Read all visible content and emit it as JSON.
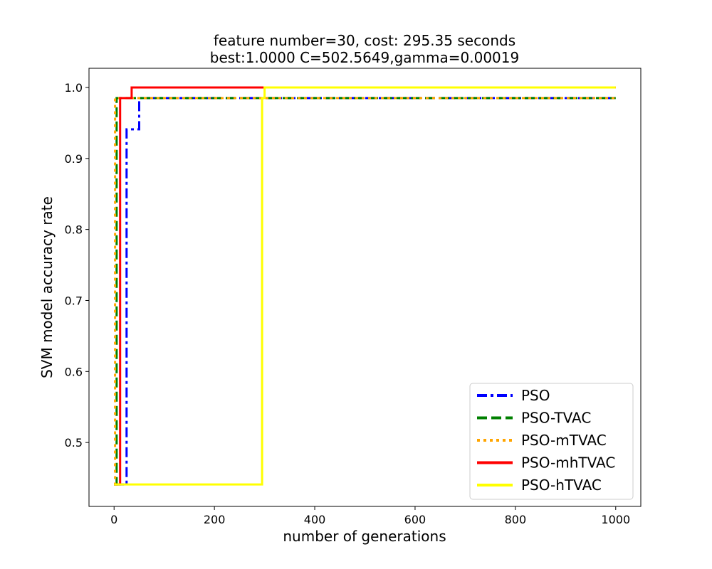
{
  "chart_data": {
    "type": "line",
    "title_line1": "feature number=30, cost: 295.35 seconds",
    "title_line2": "best:1.0000  C=502.5649,gamma=0.00019",
    "xlabel": "number of generations",
    "ylabel": "SVM model accuracy rate",
    "xlim": [
      -50,
      1050
    ],
    "ylim": [
      0.41,
      1.027
    ],
    "x_ticks": [
      0,
      200,
      400,
      600,
      800,
      1000
    ],
    "y_ticks": [
      0.5,
      0.6,
      0.7,
      0.8,
      0.9,
      1.0
    ],
    "x_tick_labels": [
      "0",
      "200",
      "400",
      "600",
      "800",
      "1000"
    ],
    "y_tick_labels": [
      "0.5",
      "0.6",
      "0.7",
      "0.8",
      "0.9",
      "1.0"
    ],
    "legend_position": "lower-right",
    "grid": false,
    "series": [
      {
        "name": "PSO",
        "color": "#0000ff",
        "dash": "dashdot",
        "x": [
          0,
          25,
          25,
          50,
          50,
          1000
        ],
        "y": [
          0.441,
          0.441,
          0.941,
          0.941,
          0.985,
          0.985
        ]
      },
      {
        "name": "PSO-TVAC",
        "color": "#008000",
        "dash": "dashed",
        "x": [
          0,
          5,
          5,
          1000
        ],
        "y": [
          0.441,
          0.441,
          0.985,
          0.985
        ]
      },
      {
        "name": "PSO-mTVAC",
        "color": "#ffa500",
        "dash": "dotted",
        "x": [
          0,
          2,
          2,
          1000
        ],
        "y": [
          0.441,
          0.441,
          0.985,
          0.985
        ]
      },
      {
        "name": "PSO-mhTVAC",
        "color": "#ff0000",
        "dash": "solid",
        "x": [
          0,
          12,
          12,
          35,
          35,
          1000
        ],
        "y": [
          0.441,
          0.441,
          0.985,
          0.985,
          1.0,
          1.0
        ]
      },
      {
        "name": "PSO-hTVAC",
        "color": "#ffff00",
        "dash": "solid",
        "x": [
          0,
          295,
          295,
          300,
          300,
          1000
        ],
        "y": [
          0.441,
          0.441,
          0.985,
          0.985,
          1.0,
          1.0
        ]
      }
    ]
  }
}
